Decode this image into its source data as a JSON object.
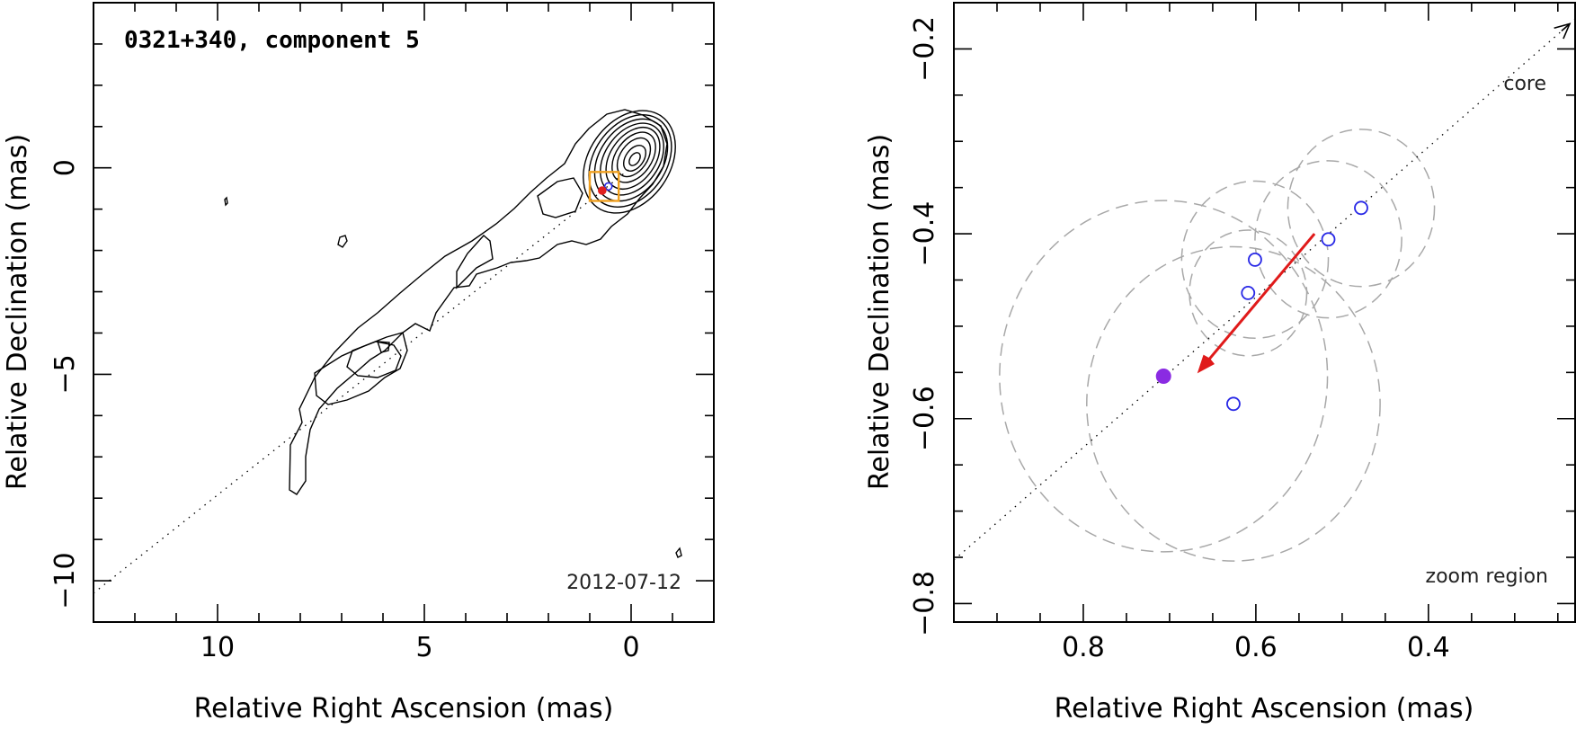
{
  "chart_data": [
    {
      "type": "contour",
      "title": "0321+340, component 5",
      "epoch": "2012-07-12",
      "xlabel": "Relative Right Ascension (mas)",
      "ylabel": "Relative Declination (mas)",
      "xlim": [
        13,
        -2
      ],
      "ylim": [
        -11,
        4
      ],
      "x_ticks": [
        {
          "value": 10,
          "label": "10"
        },
        {
          "value": 5,
          "label": "5"
        },
        {
          "value": 0,
          "label": "0"
        }
      ],
      "y_ticks": [
        {
          "value": 0,
          "label": "0"
        },
        {
          "value": -5,
          "label": "−5"
        },
        {
          "value": -10,
          "label": "−10"
        }
      ],
      "jet_axis": [
        [
          13,
          -10.3
        ],
        [
          0,
          0
        ]
      ],
      "zoom_box": {
        "x": [
          0.3,
          1.0
        ],
        "y": [
          -0.8,
          -0.1
        ],
        "color": "#f0a020"
      },
      "component_positions": [
        [
          0.55,
          -0.45
        ],
        [
          0.7,
          -0.55
        ]
      ],
      "colors": {
        "component": "#2828e6",
        "current": "#e02020"
      }
    },
    {
      "type": "scatter",
      "xlabel": "Relative Right Ascension (mas)",
      "ylabel": "Relative Declination (mas)",
      "annotation_core": "core",
      "annotation_zoom": "zoom region",
      "xlim": [
        0.95,
        0.23
      ],
      "ylim": [
        -0.82,
        -0.15
      ],
      "x_ticks": [
        {
          "value": 0.8,
          "label": "0.8"
        },
        {
          "value": 0.6,
          "label": "0.6"
        },
        {
          "value": 0.4,
          "label": "0.4"
        }
      ],
      "y_ticks": [
        {
          "value": -0.2,
          "label": "−0.2"
        },
        {
          "value": -0.4,
          "label": "−0.4"
        },
        {
          "value": -0.6,
          "label": "−0.6"
        },
        {
          "value": -0.8,
          "label": "−0.8"
        }
      ],
      "points": [
        {
          "x": 0.478,
          "y": -0.372
        },
        {
          "x": 0.516,
          "y": -0.406
        },
        {
          "x": 0.601,
          "y": -0.428
        },
        {
          "x": 0.609,
          "y": -0.464
        },
        {
          "x": 0.626,
          "y": -0.584
        }
      ],
      "current_point": {
        "x": 0.707,
        "y": -0.554
      },
      "error_circles": [
        {
          "x": 0.478,
          "y": -0.372,
          "r": 0.085
        },
        {
          "x": 0.516,
          "y": -0.406,
          "r": 0.085
        },
        {
          "x": 0.601,
          "y": -0.428,
          "r": 0.085
        },
        {
          "x": 0.609,
          "y": -0.464,
          "r": 0.068
        },
        {
          "x": 0.626,
          "y": -0.584,
          "r": 0.17
        },
        {
          "x": 0.707,
          "y": -0.554,
          "r": 0.19
        }
      ],
      "velocity_arrow": {
        "from": [
          0.532,
          -0.4
        ],
        "to": [
          0.667,
          -0.55
        ],
        "color": "#e01a1a"
      },
      "jet_axis": [
        [
          0.95,
          -0.753
        ],
        [
          0.23,
          -0.168
        ]
      ],
      "colors": {
        "open": "#2828e6",
        "filled": "#8a2be2",
        "error_circle": "#a8a8a8"
      }
    }
  ]
}
